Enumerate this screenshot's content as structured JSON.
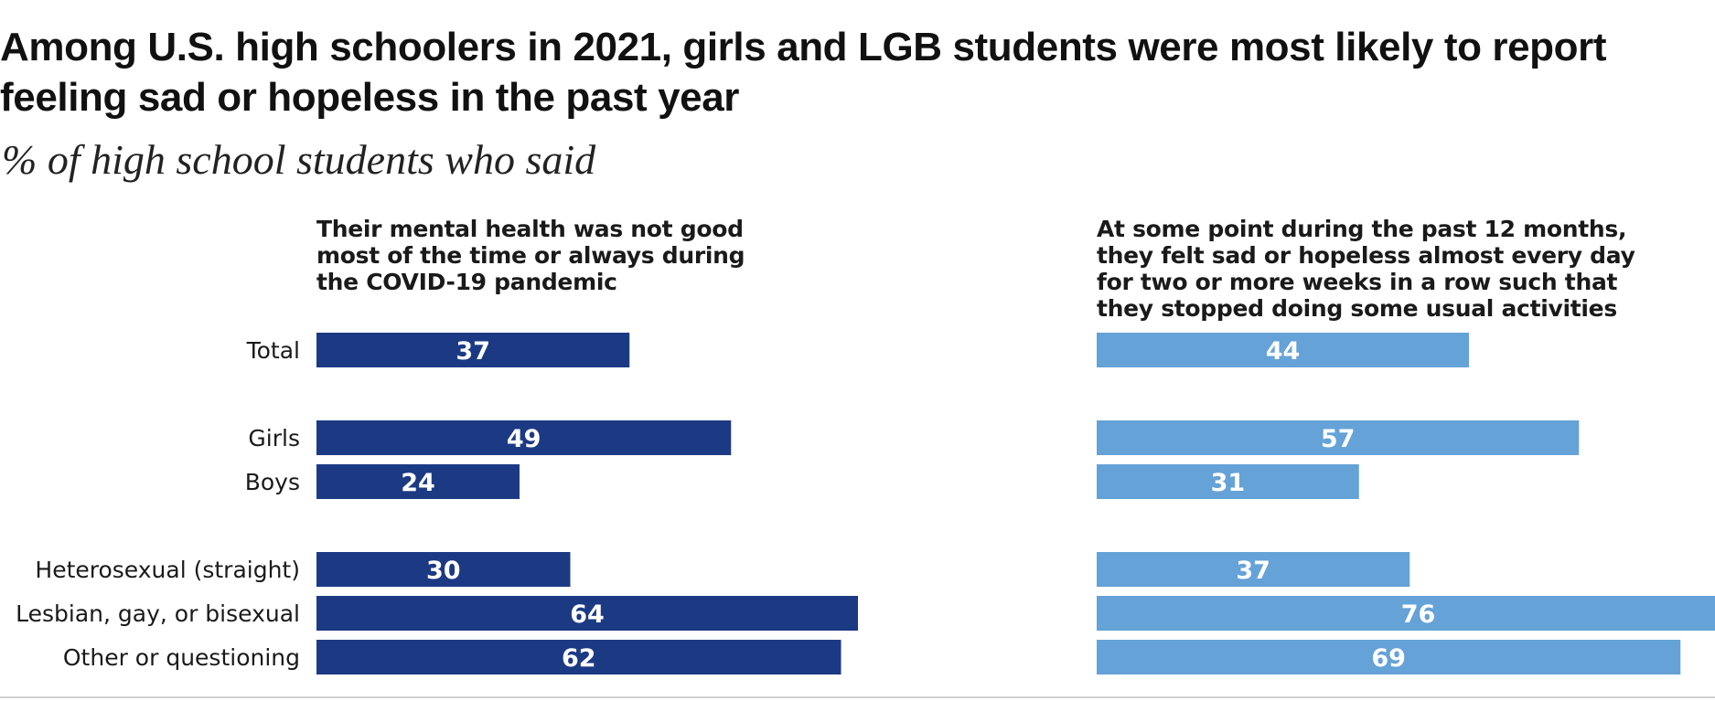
{
  "title": "Among U.S. high schoolers in 2021, girls and LGB students were most likely to report feeling sad or hopeless in the past year",
  "subtitle": "% of high school students who said",
  "colors": {
    "left_bar": "#1c3a84",
    "right_bar": "#65a2d7",
    "bar_label": "#ffffff",
    "category_text": "#1a1a1a"
  },
  "chart_data": {
    "type": "bar",
    "orientation": "horizontal",
    "categories": [
      "Total",
      "Girls",
      "Boys",
      "Heterosexual (straight)",
      "Lesbian, gay, or bisexual",
      "Other or questioning"
    ],
    "series": [
      {
        "name": "Their mental health was not good most of the time or always during the COVID-19 pandemic",
        "values": [
          37,
          49,
          24,
          30,
          64,
          62
        ]
      },
      {
        "name": "At some point during the past 12 months, they felt sad or hopeless almost every day for two or more weeks in a row such that they stopped doing some usual activities",
        "values": [
          44,
          57,
          31,
          37,
          76,
          69
        ]
      }
    ],
    "legend": "panel headings above each bar column",
    "grid": false
  }
}
